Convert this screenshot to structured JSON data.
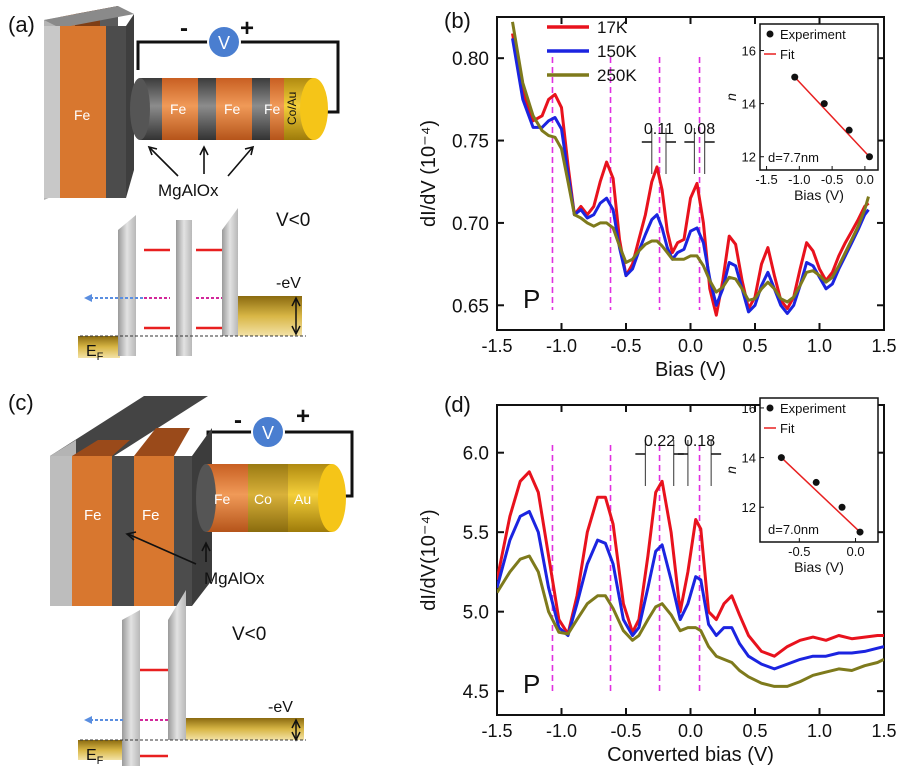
{
  "panels": {
    "a": {
      "label": "(a)",
      "minus": "-",
      "plus": "+",
      "voltmeter": "V",
      "layers": [
        "Fe",
        "Fe",
        "Fe",
        "Fe",
        "Co/Au"
      ],
      "barrier_label": "MgAlOx",
      "bias_condition": "V<0",
      "ev_label": "-eV",
      "fermi_label": "E",
      "fermi_sub": "F"
    },
    "c": {
      "label": "(c)",
      "minus": "-",
      "plus": "+",
      "voltmeter": "V",
      "layers": [
        "Fe",
        "Fe",
        "Fe",
        "Co",
        "Au"
      ],
      "barrier_label": "MgAlOx",
      "bias_condition": "V<0",
      "ev_label": "-eV",
      "fermi_label": "E",
      "fermi_sub": "F"
    }
  },
  "chart_data": [
    {
      "panel": "(b)",
      "type": "line",
      "xlabel": "Bias (V)",
      "ylabel": "dI/dV (10⁻⁴)",
      "xlim": [
        -1.5,
        1.5
      ],
      "ylim": [
        0.635,
        0.825
      ],
      "xticks": [
        -1.5,
        -1.0,
        -0.5,
        0.0,
        0.5,
        1.0,
        1.5
      ],
      "xtick_labels": [
        "-1.5",
        "-1.0",
        "-0.5",
        "0.0",
        "0.5",
        "1.0",
        "1.5"
      ],
      "yticks": [
        0.65,
        0.7,
        0.75,
        0.8
      ],
      "ytick_labels": [
        "0.65",
        "0.70",
        "0.75",
        "0.80"
      ],
      "corner_label": "P",
      "legend": "top-left",
      "series": [
        {
          "name": "17K",
          "color": "#e8121d",
          "x": [
            -1.38,
            -1.3,
            -1.22,
            -1.15,
            -1.1,
            -1.05,
            -1.0,
            -0.95,
            -0.9,
            -0.85,
            -0.8,
            -0.75,
            -0.7,
            -0.65,
            -0.6,
            -0.55,
            -0.5,
            -0.45,
            -0.4,
            -0.35,
            -0.3,
            -0.26,
            -0.22,
            -0.18,
            -0.14,
            -0.1,
            -0.05,
            0.0,
            0.05,
            0.1,
            0.15,
            0.2,
            0.25,
            0.3,
            0.35,
            0.4,
            0.45,
            0.5,
            0.55,
            0.6,
            0.65,
            0.7,
            0.75,
            0.8,
            0.85,
            0.9,
            0.95,
            1.0,
            1.05,
            1.1,
            1.15,
            1.2,
            1.25,
            1.3,
            1.35,
            1.38
          ],
          "y": [
            0.815,
            0.78,
            0.762,
            0.765,
            0.775,
            0.778,
            0.77,
            0.735,
            0.705,
            0.71,
            0.705,
            0.71,
            0.725,
            0.737,
            0.727,
            0.69,
            0.668,
            0.675,
            0.69,
            0.705,
            0.725,
            0.734,
            0.72,
            0.695,
            0.682,
            0.688,
            0.69,
            0.715,
            0.724,
            0.7,
            0.66,
            0.644,
            0.665,
            0.692,
            0.687,
            0.665,
            0.648,
            0.655,
            0.675,
            0.685,
            0.668,
            0.653,
            0.648,
            0.655,
            0.672,
            0.688,
            0.683,
            0.672,
            0.665,
            0.67,
            0.68,
            0.688,
            0.695,
            0.702,
            0.71,
            0.712
          ]
        },
        {
          "name": "150K",
          "color": "#1b24e0",
          "x": [
            -1.38,
            -1.3,
            -1.22,
            -1.15,
            -1.1,
            -1.05,
            -1.0,
            -0.95,
            -0.9,
            -0.85,
            -0.8,
            -0.75,
            -0.7,
            -0.65,
            -0.6,
            -0.55,
            -0.5,
            -0.45,
            -0.4,
            -0.35,
            -0.3,
            -0.26,
            -0.22,
            -0.18,
            -0.14,
            -0.1,
            -0.05,
            0.0,
            0.05,
            0.1,
            0.15,
            0.2,
            0.25,
            0.3,
            0.35,
            0.4,
            0.45,
            0.5,
            0.55,
            0.6,
            0.65,
            0.7,
            0.75,
            0.8,
            0.85,
            0.9,
            0.95,
            1.0,
            1.05,
            1.1,
            1.15,
            1.2,
            1.25,
            1.3,
            1.35,
            1.38
          ],
          "y": [
            0.812,
            0.775,
            0.758,
            0.758,
            0.762,
            0.764,
            0.757,
            0.73,
            0.705,
            0.708,
            0.703,
            0.705,
            0.712,
            0.715,
            0.708,
            0.685,
            0.668,
            0.672,
            0.683,
            0.693,
            0.702,
            0.705,
            0.697,
            0.685,
            0.678,
            0.682,
            0.684,
            0.695,
            0.697,
            0.688,
            0.666,
            0.65,
            0.66,
            0.676,
            0.674,
            0.66,
            0.646,
            0.65,
            0.662,
            0.67,
            0.66,
            0.65,
            0.645,
            0.65,
            0.662,
            0.676,
            0.674,
            0.667,
            0.66,
            0.663,
            0.672,
            0.68,
            0.688,
            0.696,
            0.705,
            0.708
          ]
        },
        {
          "name": "250K",
          "color": "#7e7a1c",
          "x": [
            -1.38,
            -1.3,
            -1.22,
            -1.15,
            -1.1,
            -1.05,
            -1.0,
            -0.95,
            -0.9,
            -0.85,
            -0.8,
            -0.75,
            -0.7,
            -0.65,
            -0.6,
            -0.55,
            -0.5,
            -0.45,
            -0.4,
            -0.35,
            -0.3,
            -0.26,
            -0.22,
            -0.18,
            -0.14,
            -0.1,
            -0.05,
            0.0,
            0.05,
            0.1,
            0.15,
            0.2,
            0.25,
            0.3,
            0.35,
            0.4,
            0.45,
            0.5,
            0.55,
            0.6,
            0.65,
            0.7,
            0.75,
            0.8,
            0.85,
            0.9,
            0.95,
            1.0,
            1.05,
            1.1,
            1.15,
            1.2,
            1.25,
            1.3,
            1.35,
            1.38
          ],
          "y": [
            0.822,
            0.785,
            0.765,
            0.756,
            0.753,
            0.752,
            0.745,
            0.725,
            0.705,
            0.703,
            0.7,
            0.698,
            0.7,
            0.7,
            0.697,
            0.686,
            0.676,
            0.678,
            0.683,
            0.687,
            0.689,
            0.689,
            0.686,
            0.682,
            0.678,
            0.678,
            0.678,
            0.68,
            0.68,
            0.674,
            0.665,
            0.658,
            0.661,
            0.667,
            0.666,
            0.66,
            0.653,
            0.654,
            0.66,
            0.664,
            0.66,
            0.654,
            0.652,
            0.655,
            0.662,
            0.67,
            0.671,
            0.668,
            0.664,
            0.667,
            0.674,
            0.682,
            0.69,
            0.698,
            0.708,
            0.716
          ]
        }
      ],
      "dashed_lines_x": [
        -1.07,
        -0.62,
        -0.24,
        0.07
      ],
      "annotations": [
        {
          "text": "0.11",
          "x_from": -0.3,
          "x_to": -0.19
        },
        {
          "text": "0.08",
          "x_from": 0.03,
          "x_to": 0.11
        }
      ],
      "inset": {
        "xlabel": "Bias (V)",
        "ylabel": "n",
        "xlim": [
          -1.6,
          0.2
        ],
        "ylim": [
          11.5,
          17
        ],
        "xticks": [
          -1.5,
          -1.0,
          -0.5,
          0.0
        ],
        "xtick_labels": [
          "-1.5",
          "-1.0",
          "-0.5",
          "0.0"
        ],
        "yticks": [
          12,
          14,
          16
        ],
        "ytick_labels": [
          "12",
          "14",
          "16"
        ],
        "legend": [
          "Experiment",
          "Fit"
        ],
        "note": "d=7.7nm",
        "points": [
          {
            "x": -1.07,
            "y": 15
          },
          {
            "x": -0.62,
            "y": 14
          },
          {
            "x": -0.24,
            "y": 13
          },
          {
            "x": 0.07,
            "y": 12
          }
        ],
        "fit": [
          {
            "x": -1.07,
            "y": 15
          },
          {
            "x": 0.07,
            "y": 12
          }
        ]
      }
    },
    {
      "panel": "(d)",
      "type": "line",
      "xlabel": "Converted bias (V)",
      "ylabel": "dI/dV(10⁻⁴)",
      "xlim": [
        -1.5,
        1.5
      ],
      "ylim": [
        4.35,
        6.3
      ],
      "xticks": [
        -1.5,
        -1.0,
        -0.5,
        0.0,
        0.5,
        1.0,
        1.5
      ],
      "xtick_labels": [
        "-1.5",
        "-1.0",
        "-0.5",
        "0.0",
        "0.5",
        "1.0",
        "1.5"
      ],
      "yticks": [
        4.5,
        5.0,
        5.5,
        6.0
      ],
      "ytick_labels": [
        "4.5",
        "5.0",
        "5.5",
        "6.0"
      ],
      "corner_label": "P",
      "series": [
        {
          "name": "17K",
          "color": "#e8121d",
          "x": [
            -1.5,
            -1.4,
            -1.32,
            -1.25,
            -1.18,
            -1.1,
            -1.02,
            -0.95,
            -0.88,
            -0.8,
            -0.72,
            -0.66,
            -0.6,
            -0.52,
            -0.45,
            -0.4,
            -0.33,
            -0.27,
            -0.22,
            -0.15,
            -0.08,
            -0.02,
            0.04,
            0.08,
            0.14,
            0.2,
            0.26,
            0.32,
            0.38,
            0.45,
            0.55,
            0.65,
            0.75,
            0.85,
            0.95,
            1.05,
            1.15,
            1.25,
            1.35,
            1.45,
            1.5
          ],
          "y": [
            5.2,
            5.6,
            5.82,
            5.88,
            5.75,
            5.35,
            4.95,
            4.86,
            5.1,
            5.5,
            5.72,
            5.72,
            5.55,
            5.05,
            4.87,
            4.95,
            5.35,
            5.75,
            5.82,
            5.5,
            5.0,
            5.25,
            5.58,
            5.52,
            5.0,
            4.95,
            5.05,
            5.1,
            4.98,
            4.85,
            4.75,
            4.72,
            4.78,
            4.82,
            4.84,
            4.82,
            4.85,
            4.83,
            4.84,
            4.85,
            4.85
          ]
        },
        {
          "name": "150K",
          "color": "#1b24e0",
          "x": [
            -1.5,
            -1.4,
            -1.32,
            -1.25,
            -1.18,
            -1.1,
            -1.02,
            -0.95,
            -0.88,
            -0.8,
            -0.72,
            -0.66,
            -0.6,
            -0.52,
            -0.45,
            -0.4,
            -0.33,
            -0.27,
            -0.22,
            -0.15,
            -0.08,
            -0.02,
            0.04,
            0.08,
            0.14,
            0.2,
            0.26,
            0.32,
            0.38,
            0.45,
            0.55,
            0.65,
            0.75,
            0.85,
            0.95,
            1.05,
            1.15,
            1.25,
            1.35,
            1.45,
            1.5
          ],
          "y": [
            5.15,
            5.45,
            5.6,
            5.63,
            5.5,
            5.15,
            4.9,
            4.85,
            5.05,
            5.3,
            5.45,
            5.43,
            5.3,
            4.95,
            4.85,
            4.9,
            5.15,
            5.38,
            5.42,
            5.2,
            4.95,
            5.05,
            5.22,
            5.2,
            4.92,
            4.85,
            4.9,
            4.9,
            4.8,
            4.72,
            4.67,
            4.64,
            4.67,
            4.7,
            4.72,
            4.72,
            4.74,
            4.74,
            4.75,
            4.77,
            4.78
          ]
        },
        {
          "name": "250K",
          "color": "#7e7a1c",
          "x": [
            -1.5,
            -1.4,
            -1.32,
            -1.25,
            -1.18,
            -1.1,
            -1.02,
            -0.95,
            -0.88,
            -0.8,
            -0.72,
            -0.66,
            -0.6,
            -0.52,
            -0.45,
            -0.4,
            -0.33,
            -0.27,
            -0.22,
            -0.15,
            -0.08,
            -0.02,
            0.04,
            0.08,
            0.14,
            0.2,
            0.26,
            0.32,
            0.38,
            0.45,
            0.55,
            0.65,
            0.75,
            0.85,
            0.95,
            1.05,
            1.15,
            1.25,
            1.35,
            1.45,
            1.5
          ],
          "y": [
            5.12,
            5.25,
            5.33,
            5.35,
            5.25,
            5.0,
            4.87,
            4.86,
            4.95,
            5.05,
            5.1,
            5.1,
            5.02,
            4.88,
            4.82,
            4.85,
            4.95,
            5.03,
            5.05,
            4.98,
            4.88,
            4.9,
            4.9,
            4.88,
            4.78,
            4.72,
            4.7,
            4.68,
            4.63,
            4.59,
            4.55,
            4.53,
            4.53,
            4.56,
            4.6,
            4.62,
            4.64,
            4.63,
            4.66,
            4.68,
            4.7
          ]
        }
      ],
      "dashed_lines_x": [
        -1.07,
        -0.62,
        -0.24,
        0.07
      ],
      "annotations": [
        {
          "text": "0.22",
          "x_from": -0.35,
          "x_to": -0.13
        },
        {
          "text": "0.18",
          "x_from": -0.02,
          "x_to": 0.16
        }
      ],
      "inset": {
        "xlabel": "Bias (V)",
        "ylabel": "n",
        "xlim": [
          -0.85,
          0.2
        ],
        "ylim": [
          10.6,
          16.4
        ],
        "xticks": [
          -0.5,
          0.0
        ],
        "xtick_labels": [
          "-0.5",
          "0.0"
        ],
        "yticks": [
          12,
          14,
          16
        ],
        "ytick_labels": [
          "12",
          "14",
          "16"
        ],
        "legend": [
          "Experiment",
          "Fit"
        ],
        "note": "d=7.0nm",
        "points": [
          {
            "x": -0.66,
            "y": 14
          },
          {
            "x": -0.35,
            "y": 13
          },
          {
            "x": -0.12,
            "y": 12
          },
          {
            "x": 0.04,
            "y": 11
          }
        ],
        "fit": [
          {
            "x": -0.66,
            "y": 14
          },
          {
            "x": 0.04,
            "y": 11
          }
        ]
      }
    }
  ]
}
